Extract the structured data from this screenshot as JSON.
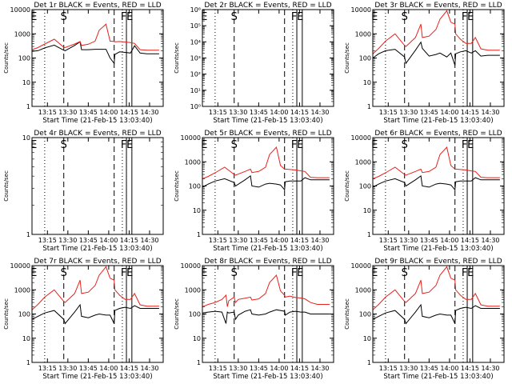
{
  "figure": {
    "xlabel": "Start Time (21-Feb-15 13:03:40)",
    "ylabel": "Counts/sec",
    "x_ticks": [
      "13:15",
      "13:30",
      "13:45",
      "14:00",
      "14:15",
      "14:30"
    ],
    "x_tick_values_min": [
      15,
      30,
      45,
      60,
      75,
      90
    ],
    "x_range_min": [
      3.67,
      100
    ],
    "series_colors": {
      "events": "#000000",
      "lld": "#e8221b"
    },
    "marker_lines": {
      "dotted_min": [
        13,
        70
      ],
      "dashed_min": [
        27,
        64
      ],
      "solid_min": [
        73,
        77
      ]
    },
    "marker_labels": {
      "E": 5,
      "S": 27,
      "F": 71,
      "E2": 75.5
    }
  },
  "chart_data": [
    {
      "type": "line",
      "title": "Det 1r BLACK = Events, RED = LLD",
      "ylim": [
        1,
        10000
      ],
      "y_ticks": [
        "10000",
        "1000",
        "100",
        "10",
        "1"
      ],
      "y_tick_values": [
        10000,
        1000,
        100,
        10,
        1
      ],
      "series": [
        {
          "name": "Events",
          "x": [
            3.7,
            8,
            13,
            20,
            27,
            28,
            35,
            39,
            40,
            45,
            50,
            53,
            58,
            61,
            64,
            64.5,
            68,
            72,
            76,
            79,
            83,
            88,
            93,
            97
          ],
          "values": [
            190,
            200,
            260,
            340,
            210,
            200,
            330,
            470,
            220,
            220,
            230,
            230,
            230,
            100,
            60,
            140,
            180,
            170,
            160,
            320,
            160,
            150,
            150,
            150
          ]
        },
        {
          "name": "LLD",
          "x": [
            3.7,
            8,
            13,
            20,
            27,
            28,
            35,
            39,
            40,
            45,
            50,
            53,
            58,
            61,
            64,
            64.5,
            68,
            72,
            76,
            79,
            83,
            88,
            93,
            97
          ],
          "values": [
            220,
            270,
            380,
            600,
            280,
            270,
            380,
            480,
            330,
            370,
            500,
            1400,
            2500,
            500,
            480,
            470,
            480,
            460,
            430,
            400,
            220,
            210,
            210,
            210
          ]
        }
      ],
      "labels": {
        "E": "E",
        "S": "S",
        "F": "F",
        "E2": "E"
      }
    },
    {
      "type": "line",
      "title": "Det 2r BLACK = Events, RED = LLD",
      "ylim": [
        1,
        1000000
      ],
      "y_ticks": [
        "10⁶",
        "10⁵",
        "10⁴",
        "10³",
        "10²",
        "10¹",
        "10⁰"
      ],
      "y_tick_values": [
        1000000,
        100000,
        10000,
        1000,
        100,
        10,
        1
      ],
      "series": [],
      "labels": {
        "E": "E",
        "S": "S",
        "F": "F",
        "E2": "E"
      }
    },
    {
      "type": "line",
      "title": "Det 3r BLACK = Events, RED = LLD",
      "ylim": [
        1,
        10000
      ],
      "y_ticks": [
        "10000",
        "1000",
        "100",
        "10",
        "1"
      ],
      "y_tick_values": [
        10000,
        1000,
        100,
        10,
        1
      ],
      "series": [
        {
          "name": "Events",
          "x": [
            3.7,
            8,
            13,
            20,
            27,
            28,
            35,
            39,
            40,
            45,
            50,
            53,
            58,
            61,
            64,
            64.5,
            68,
            72,
            76,
            79,
            83,
            88,
            93,
            97
          ],
          "values": [
            100,
            150,
            200,
            230,
            110,
            60,
            210,
            450,
            250,
            120,
            140,
            160,
            110,
            160,
            50,
            150,
            180,
            200,
            160,
            200,
            120,
            130,
            130,
            130
          ]
        },
        {
          "name": "LLD",
          "x": [
            3.7,
            8,
            13,
            20,
            27,
            28,
            35,
            39,
            40,
            45,
            50,
            53,
            58,
            61,
            64,
            64.5,
            68,
            72,
            76,
            79,
            83,
            88,
            93,
            97
          ],
          "values": [
            150,
            250,
            500,
            1000,
            330,
            300,
            700,
            2500,
            700,
            800,
            1500,
            4000,
            9000,
            3000,
            2500,
            1000,
            600,
            400,
            400,
            700,
            240,
            210,
            210,
            210
          ]
        }
      ],
      "labels": {
        "E": "E",
        "S": "S",
        "F": "F",
        "E2": "E"
      }
    },
    {
      "type": "line",
      "title": "Det 4r BLACK = Events, RED = LLD",
      "ylim": [
        1,
        10
      ],
      "y_ticks": [
        "10",
        "1"
      ],
      "y_tick_values": [
        10,
        1
      ],
      "series": [],
      "labels": {
        "E": "E",
        "S": "S",
        "F": "F",
        "E2": "E"
      }
    },
    {
      "type": "line",
      "title": "Det 5r BLACK = Events, RED = LLD",
      "ylim": [
        1,
        10000
      ],
      "y_ticks": [
        "10000",
        "1000",
        "100",
        "10",
        "1"
      ],
      "y_tick_values": [
        10000,
        1000,
        100,
        10,
        1
      ],
      "series": [
        {
          "name": "Events",
          "x": [
            3.7,
            8,
            13,
            20,
            27,
            28,
            35,
            39,
            40,
            45,
            50,
            53,
            58,
            61,
            64,
            64.5,
            68,
            72,
            76,
            79,
            83,
            88,
            93,
            97
          ],
          "values": [
            90,
            120,
            160,
            200,
            140,
            100,
            180,
            260,
            100,
            90,
            120,
            130,
            120,
            110,
            70,
            150,
            160,
            160,
            160,
            220,
            180,
            180,
            180,
            180
          ]
        },
        {
          "name": "LLD",
          "x": [
            3.7,
            8,
            13,
            20,
            27,
            28,
            35,
            39,
            40,
            45,
            50,
            53,
            58,
            61,
            64,
            64.5,
            68,
            72,
            76,
            79,
            83,
            88,
            93,
            97
          ],
          "values": [
            200,
            250,
            350,
            600,
            300,
            280,
            400,
            500,
            360,
            400,
            600,
            2000,
            4000,
            700,
            500,
            500,
            480,
            460,
            420,
            400,
            230,
            220,
            220,
            220
          ]
        }
      ],
      "labels": {
        "E": "E",
        "S": "S",
        "F": "F",
        "E2": "E"
      }
    },
    {
      "type": "line",
      "title": "Det 6r BLACK = Events, RED = LLD",
      "ylim": [
        1,
        10000
      ],
      "y_ticks": [
        "10000",
        "1000",
        "100",
        "10",
        "1"
      ],
      "y_tick_values": [
        10000,
        1000,
        100,
        10,
        1
      ],
      "series": [
        {
          "name": "Events",
          "x": [
            3.7,
            8,
            13,
            20,
            27,
            28,
            35,
            39,
            40,
            45,
            50,
            53,
            58,
            61,
            64,
            64.5,
            68,
            72,
            76,
            79,
            83,
            88,
            93,
            97
          ],
          "values": [
            90,
            120,
            160,
            200,
            140,
            100,
            180,
            260,
            100,
            90,
            120,
            130,
            120,
            110,
            70,
            150,
            160,
            160,
            160,
            220,
            180,
            180,
            180,
            180
          ]
        },
        {
          "name": "LLD",
          "x": [
            3.7,
            8,
            13,
            20,
            27,
            28,
            35,
            39,
            40,
            45,
            50,
            53,
            58,
            61,
            64,
            64.5,
            68,
            72,
            76,
            79,
            83,
            88,
            93,
            97
          ],
          "values": [
            200,
            250,
            350,
            600,
            300,
            280,
            400,
            500,
            360,
            400,
            600,
            2000,
            4000,
            700,
            500,
            500,
            480,
            460,
            420,
            400,
            230,
            220,
            220,
            220
          ]
        }
      ],
      "labels": {
        "E": "E",
        "S": "S",
        "F": "F",
        "E2": "E"
      }
    },
    {
      "type": "line",
      "title": "Det 7r BLACK = Events, RED = LLD",
      "ylim": [
        1,
        10000
      ],
      "y_ticks": [
        "10000",
        "1000",
        "100",
        "10",
        "1"
      ],
      "y_tick_values": [
        10000,
        1000,
        100,
        10,
        1
      ],
      "series": [
        {
          "name": "Events",
          "x": [
            3.7,
            8,
            13,
            20,
            27,
            28,
            35,
            39,
            40,
            45,
            50,
            53,
            58,
            61,
            64,
            64.5,
            68,
            72,
            76,
            79,
            83,
            88,
            93,
            97
          ],
          "values": [
            60,
            80,
            110,
            140,
            60,
            40,
            120,
            240,
            80,
            70,
            90,
            100,
            90,
            90,
            40,
            140,
            170,
            190,
            170,
            220,
            170,
            170,
            170,
            170
          ]
        },
        {
          "name": "LLD",
          "x": [
            3.7,
            8,
            13,
            20,
            27,
            28,
            35,
            39,
            40,
            45,
            50,
            53,
            58,
            61,
            64,
            64.5,
            68,
            72,
            76,
            79,
            83,
            88,
            93,
            97
          ],
          "values": [
            150,
            250,
            500,
            1000,
            330,
            300,
            700,
            2500,
            700,
            800,
            1500,
            4000,
            9000,
            3000,
            2500,
            1000,
            600,
            400,
            400,
            700,
            240,
            210,
            210,
            210
          ]
        }
      ],
      "labels": {
        "E": "E",
        "S": "S",
        "F": "F",
        "E2": "E"
      }
    },
    {
      "type": "line",
      "title": "Det 8r BLACK = Events, RED = LLD",
      "ylim": [
        1,
        10000
      ],
      "y_ticks": [
        "10000",
        "1000",
        "100",
        "10",
        "1"
      ],
      "y_tick_values": [
        10000,
        1000,
        100,
        10,
        1
      ],
      "series": [
        {
          "name": "Events",
          "x": [
            3.7,
            8,
            13,
            18,
            21,
            22,
            23,
            27,
            28,
            30,
            35,
            39,
            40,
            45,
            50,
            53,
            58,
            61,
            64,
            64.5,
            68,
            72,
            76,
            79,
            83,
            88,
            93,
            97
          ],
          "values": [
            110,
            120,
            130,
            120,
            40,
            120,
            110,
            120,
            60,
            90,
            130,
            150,
            100,
            90,
            100,
            120,
            150,
            140,
            130,
            90,
            120,
            130,
            120,
            120,
            100,
            100,
            100,
            100
          ]
        },
        {
          "name": "LLD",
          "x": [
            3.7,
            8,
            13,
            18,
            21,
            22,
            23,
            27,
            28,
            30,
            35,
            39,
            40,
            45,
            50,
            53,
            58,
            61,
            64,
            64.5,
            68,
            72,
            76,
            79,
            83,
            88,
            93,
            97
          ],
          "values": [
            200,
            250,
            300,
            400,
            600,
            200,
            350,
            500,
            300,
            400,
            450,
            500,
            380,
            420,
            700,
            2000,
            4000,
            900,
            600,
            500,
            550,
            480,
            460,
            420,
            300,
            250,
            250,
            250
          ]
        }
      ],
      "labels": {
        "E": "E",
        "S": "S",
        "F": "F",
        "E2": "E"
      }
    },
    {
      "type": "line",
      "title": "Det 9r BLACK = Events, RED = LLD",
      "ylim": [
        1,
        10000
      ],
      "y_ticks": [
        "10000",
        "1000",
        "100",
        "10",
        "1"
      ],
      "y_tick_values": [
        10000,
        1000,
        100,
        10,
        1
      ],
      "series": [
        {
          "name": "Events",
          "x": [
            3.7,
            8,
            13,
            20,
            27,
            28,
            35,
            39,
            40,
            45,
            50,
            53,
            58,
            61,
            64,
            64.5,
            68,
            72,
            76,
            79,
            83,
            88,
            93,
            97
          ],
          "values": [
            60,
            80,
            110,
            140,
            60,
            40,
            120,
            240,
            80,
            70,
            90,
            100,
            90,
            90,
            40,
            140,
            170,
            190,
            170,
            220,
            170,
            170,
            170,
            170
          ]
        },
        {
          "name": "LLD",
          "x": [
            3.7,
            8,
            13,
            20,
            27,
            28,
            35,
            39,
            40,
            45,
            50,
            53,
            58,
            61,
            64,
            64.5,
            68,
            72,
            76,
            79,
            83,
            88,
            93,
            97
          ],
          "values": [
            150,
            250,
            500,
            1000,
            330,
            300,
            700,
            2500,
            700,
            800,
            1500,
            4000,
            9000,
            3000,
            2500,
            1000,
            600,
            400,
            400,
            700,
            240,
            210,
            210,
            210
          ]
        }
      ],
      "labels": {
        "E": "E",
        "S": "S",
        "F": "F",
        "E2": "E"
      }
    }
  ]
}
